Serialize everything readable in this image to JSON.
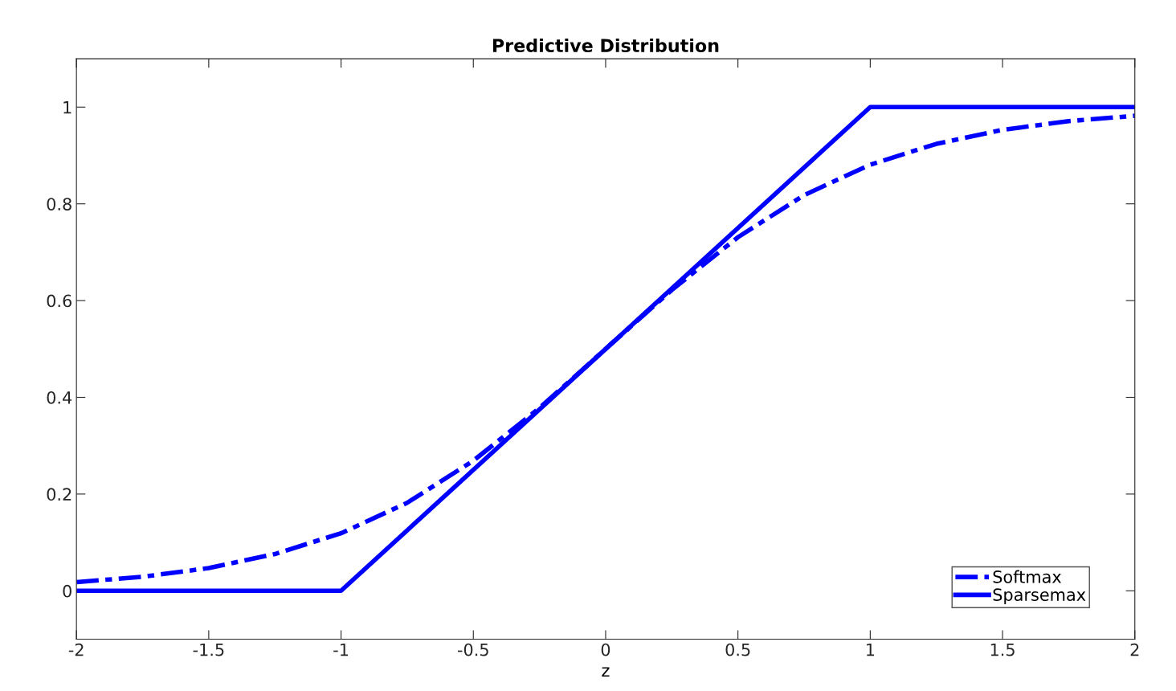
{
  "chart_data": {
    "type": "line",
    "title": "Predictive Distribution",
    "xlabel": "z",
    "series": [
      {
        "name": "Softmax",
        "color": "#0000ff",
        "line_style": "dashed",
        "x": [
          -2,
          -1.75,
          -1.5,
          -1.25,
          -1,
          -0.75,
          -0.5,
          -0.25,
          0,
          0.25,
          0.5,
          0.75,
          1,
          1.25,
          1.5,
          1.75,
          2
        ],
        "values": [
          0.018,
          0.029,
          0.047,
          0.076,
          0.119,
          0.182,
          0.269,
          0.378,
          0.5,
          0.622,
          0.731,
          0.818,
          0.881,
          0.924,
          0.953,
          0.971,
          0.982
        ]
      },
      {
        "name": "Sparsemax",
        "color": "#0000ff",
        "line_style": "solid",
        "x": [
          -2,
          -1,
          1,
          2
        ],
        "values": [
          0,
          0,
          1,
          1
        ]
      }
    ],
    "xlim": [
      -2,
      2
    ],
    "xticks": [
      -2,
      -1.5,
      -1,
      -0.5,
      0,
      0.5,
      1,
      1.5,
      2
    ],
    "ylim": [
      -0.1,
      1.1
    ],
    "yticks": [
      0,
      0.2,
      0.4,
      0.6,
      0.8,
      1
    ],
    "grid": false,
    "legend": "bottom right",
    "marker": "none"
  }
}
